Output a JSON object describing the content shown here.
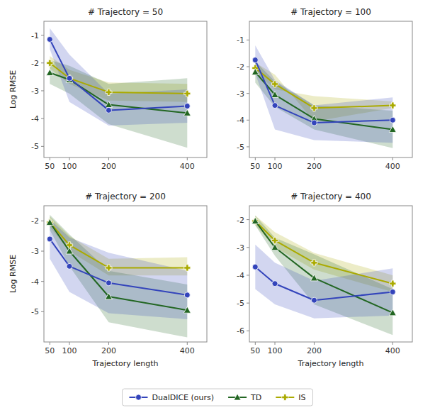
{
  "chart_data": [
    {
      "type": "line",
      "title": "# Trajectory = 50",
      "ylabel": "Log RMSE",
      "x": [
        50,
        100,
        200,
        400
      ],
      "xlim": [
        35,
        450
      ],
      "xticks": [
        50,
        100,
        200,
        400
      ],
      "ylim": [
        -5.4,
        -0.5
      ],
      "yticks": [
        -5,
        -4,
        -3,
        -2,
        -1
      ],
      "grid": false,
      "legend": "bottom",
      "series": [
        {
          "name": "IS",
          "color": "#aaaa00",
          "marker": "plus",
          "values": [
            -2.0,
            -2.55,
            -3.05,
            -3.1
          ],
          "lo": [
            -2.2,
            -2.75,
            -3.35,
            -3.4
          ],
          "hi": [
            -1.75,
            -2.25,
            -2.7,
            -2.75
          ]
        },
        {
          "name": "TD",
          "color": "#226622",
          "marker": "triangle",
          "values": [
            -2.35,
            -2.6,
            -3.5,
            -3.8
          ],
          "lo": [
            -2.75,
            -3.1,
            -4.2,
            -5.05
          ],
          "hi": [
            -1.9,
            -2.1,
            -2.75,
            -2.55
          ]
        },
        {
          "name": "DualDICE (ours)",
          "color": "#3344bb",
          "marker": "circle",
          "values": [
            -1.15,
            -2.55,
            -3.7,
            -3.55
          ],
          "lo": [
            -1.5,
            -3.4,
            -4.25,
            -4.15
          ],
          "hi": [
            -0.75,
            -1.7,
            -3.1,
            -2.95
          ]
        }
      ]
    },
    {
      "type": "line",
      "title": "# Trajectory = 100",
      "x": [
        50,
        100,
        200,
        400
      ],
      "xlim": [
        35,
        450
      ],
      "xticks": [
        50,
        100,
        200,
        400
      ],
      "ylim": [
        -5.4,
        -0.3
      ],
      "yticks": [
        -5,
        -4,
        -3,
        -2,
        -1
      ],
      "grid": false,
      "series": [
        {
          "name": "IS",
          "color": "#aaaa00",
          "marker": "plus",
          "values": [
            -2.05,
            -2.65,
            -3.55,
            -3.45
          ],
          "lo": [
            -2.2,
            -2.85,
            -3.1,
            -3.3
          ],
          "hi": [
            -1.85,
            -2.3,
            -4.05,
            -3.55
          ]
        },
        {
          "name": "TD",
          "color": "#226622",
          "marker": "triangle",
          "values": [
            -2.2,
            -3.05,
            -3.95,
            -4.35
          ],
          "lo": [
            -2.6,
            -3.5,
            -4.35,
            -5.05
          ],
          "hi": [
            -1.8,
            -2.55,
            -3.45,
            -3.65
          ]
        },
        {
          "name": "DualDICE (ours)",
          "color": "#3344bb",
          "marker": "circle",
          "values": [
            -1.75,
            -3.45,
            -4.1,
            -4.0
          ],
          "lo": [
            -2.25,
            -4.35,
            -4.75,
            -4.85
          ],
          "hi": [
            -1.2,
            -2.5,
            -3.45,
            -3.15
          ]
        }
      ]
    },
    {
      "type": "line",
      "title": "# Trajectory = 200",
      "xlabel": "Trajectory length",
      "ylabel": "Log RMSE",
      "x": [
        50,
        100,
        200,
        400
      ],
      "xlim": [
        35,
        450
      ],
      "xticks": [
        50,
        100,
        200,
        400
      ],
      "ylim": [
        -6.0,
        -1.5
      ],
      "yticks": [
        -5,
        -4,
        -3,
        -2
      ],
      "grid": false,
      "series": [
        {
          "name": "IS",
          "color": "#aaaa00",
          "marker": "plus",
          "values": [
            -2.05,
            -2.8,
            -3.55,
            -3.55
          ],
          "lo": [
            -2.2,
            -3.0,
            -3.8,
            -3.8
          ],
          "hi": [
            -1.85,
            -2.5,
            -3.25,
            -3.2
          ]
        },
        {
          "name": "TD",
          "color": "#226622",
          "marker": "triangle",
          "values": [
            -2.05,
            -3.0,
            -4.5,
            -4.95
          ],
          "lo": [
            -2.3,
            -3.5,
            -5.35,
            -5.85
          ],
          "hi": [
            -1.8,
            -2.45,
            -3.65,
            -4.1
          ]
        },
        {
          "name": "DualDICE (ours)",
          "color": "#3344bb",
          "marker": "circle",
          "values": [
            -2.6,
            -3.5,
            -4.05,
            -4.45
          ],
          "lo": [
            -3.25,
            -4.35,
            -5.05,
            -5.25
          ],
          "hi": [
            -1.95,
            -2.55,
            -3.05,
            -3.65
          ]
        }
      ]
    },
    {
      "type": "line",
      "title": "# Trajectory = 400",
      "xlabel": "Trajectory length",
      "x": [
        50,
        100,
        200,
        400
      ],
      "xlim": [
        35,
        450
      ],
      "xticks": [
        50,
        100,
        200,
        400
      ],
      "ylim": [
        -6.4,
        -1.5
      ],
      "yticks": [
        -6,
        -5,
        -4,
        -3,
        -2
      ],
      "grid": false,
      "series": [
        {
          "name": "IS",
          "color": "#aaaa00",
          "marker": "plus",
          "values": [
            -2.05,
            -2.75,
            -3.55,
            -4.3
          ],
          "lo": [
            -2.2,
            -3.0,
            -3.8,
            -4.6
          ],
          "hi": [
            -1.85,
            -2.45,
            -3.2,
            -4.0
          ]
        },
        {
          "name": "TD",
          "color": "#226622",
          "marker": "triangle",
          "values": [
            -2.05,
            -3.0,
            -4.1,
            -5.35
          ],
          "lo": [
            -2.2,
            -3.3,
            -5.05,
            -6.15
          ],
          "hi": [
            -1.85,
            -2.65,
            -3.25,
            -4.5
          ]
        },
        {
          "name": "DualDICE (ours)",
          "color": "#3344bb",
          "marker": "circle",
          "values": [
            -3.7,
            -4.3,
            -4.9,
            -4.6
          ],
          "lo": [
            -4.5,
            -5.05,
            -5.55,
            -5.45
          ],
          "hi": [
            -2.9,
            -3.55,
            -4.2,
            -3.75
          ]
        }
      ]
    }
  ]
}
